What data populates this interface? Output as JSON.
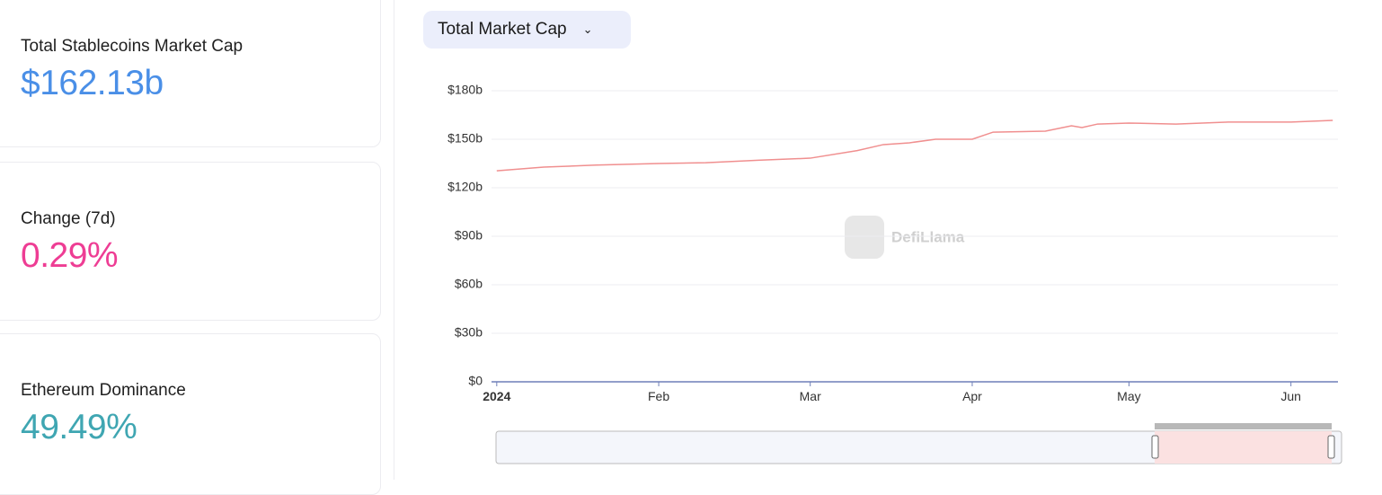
{
  "stats": [
    {
      "label": "Total Stablecoins Market Cap",
      "value": "$162.13b"
    },
    {
      "label": "Change (7d)",
      "value": "0.29%"
    },
    {
      "label": "Ethereum Dominance",
      "value": "49.49%"
    }
  ],
  "chart_selector": "Total Market Cap",
  "watermark": "DefiLlama",
  "chart_data": {
    "type": "line",
    "x": [
      0,
      9,
      19,
      31,
      40,
      50,
      60,
      69,
      74,
      79,
      84,
      91,
      95,
      105,
      110,
      112,
      115,
      121,
      130,
      140,
      152,
      160
    ],
    "series": [
      {
        "color": "#f08f8f",
        "values": [
          130.5,
          132.8,
          134,
          135,
          135.5,
          137,
          138.3,
          143,
          146.7,
          147.8,
          150,
          150,
          154.4,
          155,
          158.3,
          157.2,
          159.4,
          160,
          159.4,
          160.6,
          160.6,
          161.7
        ]
      }
    ],
    "xlim": [
      -1,
      161
    ],
    "xticks": [
      {
        "value": 0,
        "label": "2024"
      },
      {
        "value": 31,
        "label": "Feb"
      },
      {
        "value": 60,
        "label": "Mar"
      },
      {
        "value": 91,
        "label": "Apr"
      },
      {
        "value": 121,
        "label": "May"
      },
      {
        "value": 152,
        "label": "Jun"
      }
    ],
    "ylim": [
      0,
      180
    ],
    "yticks": [
      {
        "value": 0,
        "label": "$0"
      },
      {
        "value": 30,
        "label": "$30b"
      },
      {
        "value": 60,
        "label": "$60b"
      },
      {
        "value": 90,
        "label": "$90b"
      },
      {
        "value": 120,
        "label": "$120b"
      },
      {
        "value": 150,
        "label": "$150b"
      },
      {
        "value": 180,
        "label": "$180b"
      }
    ],
    "grid": true
  }
}
